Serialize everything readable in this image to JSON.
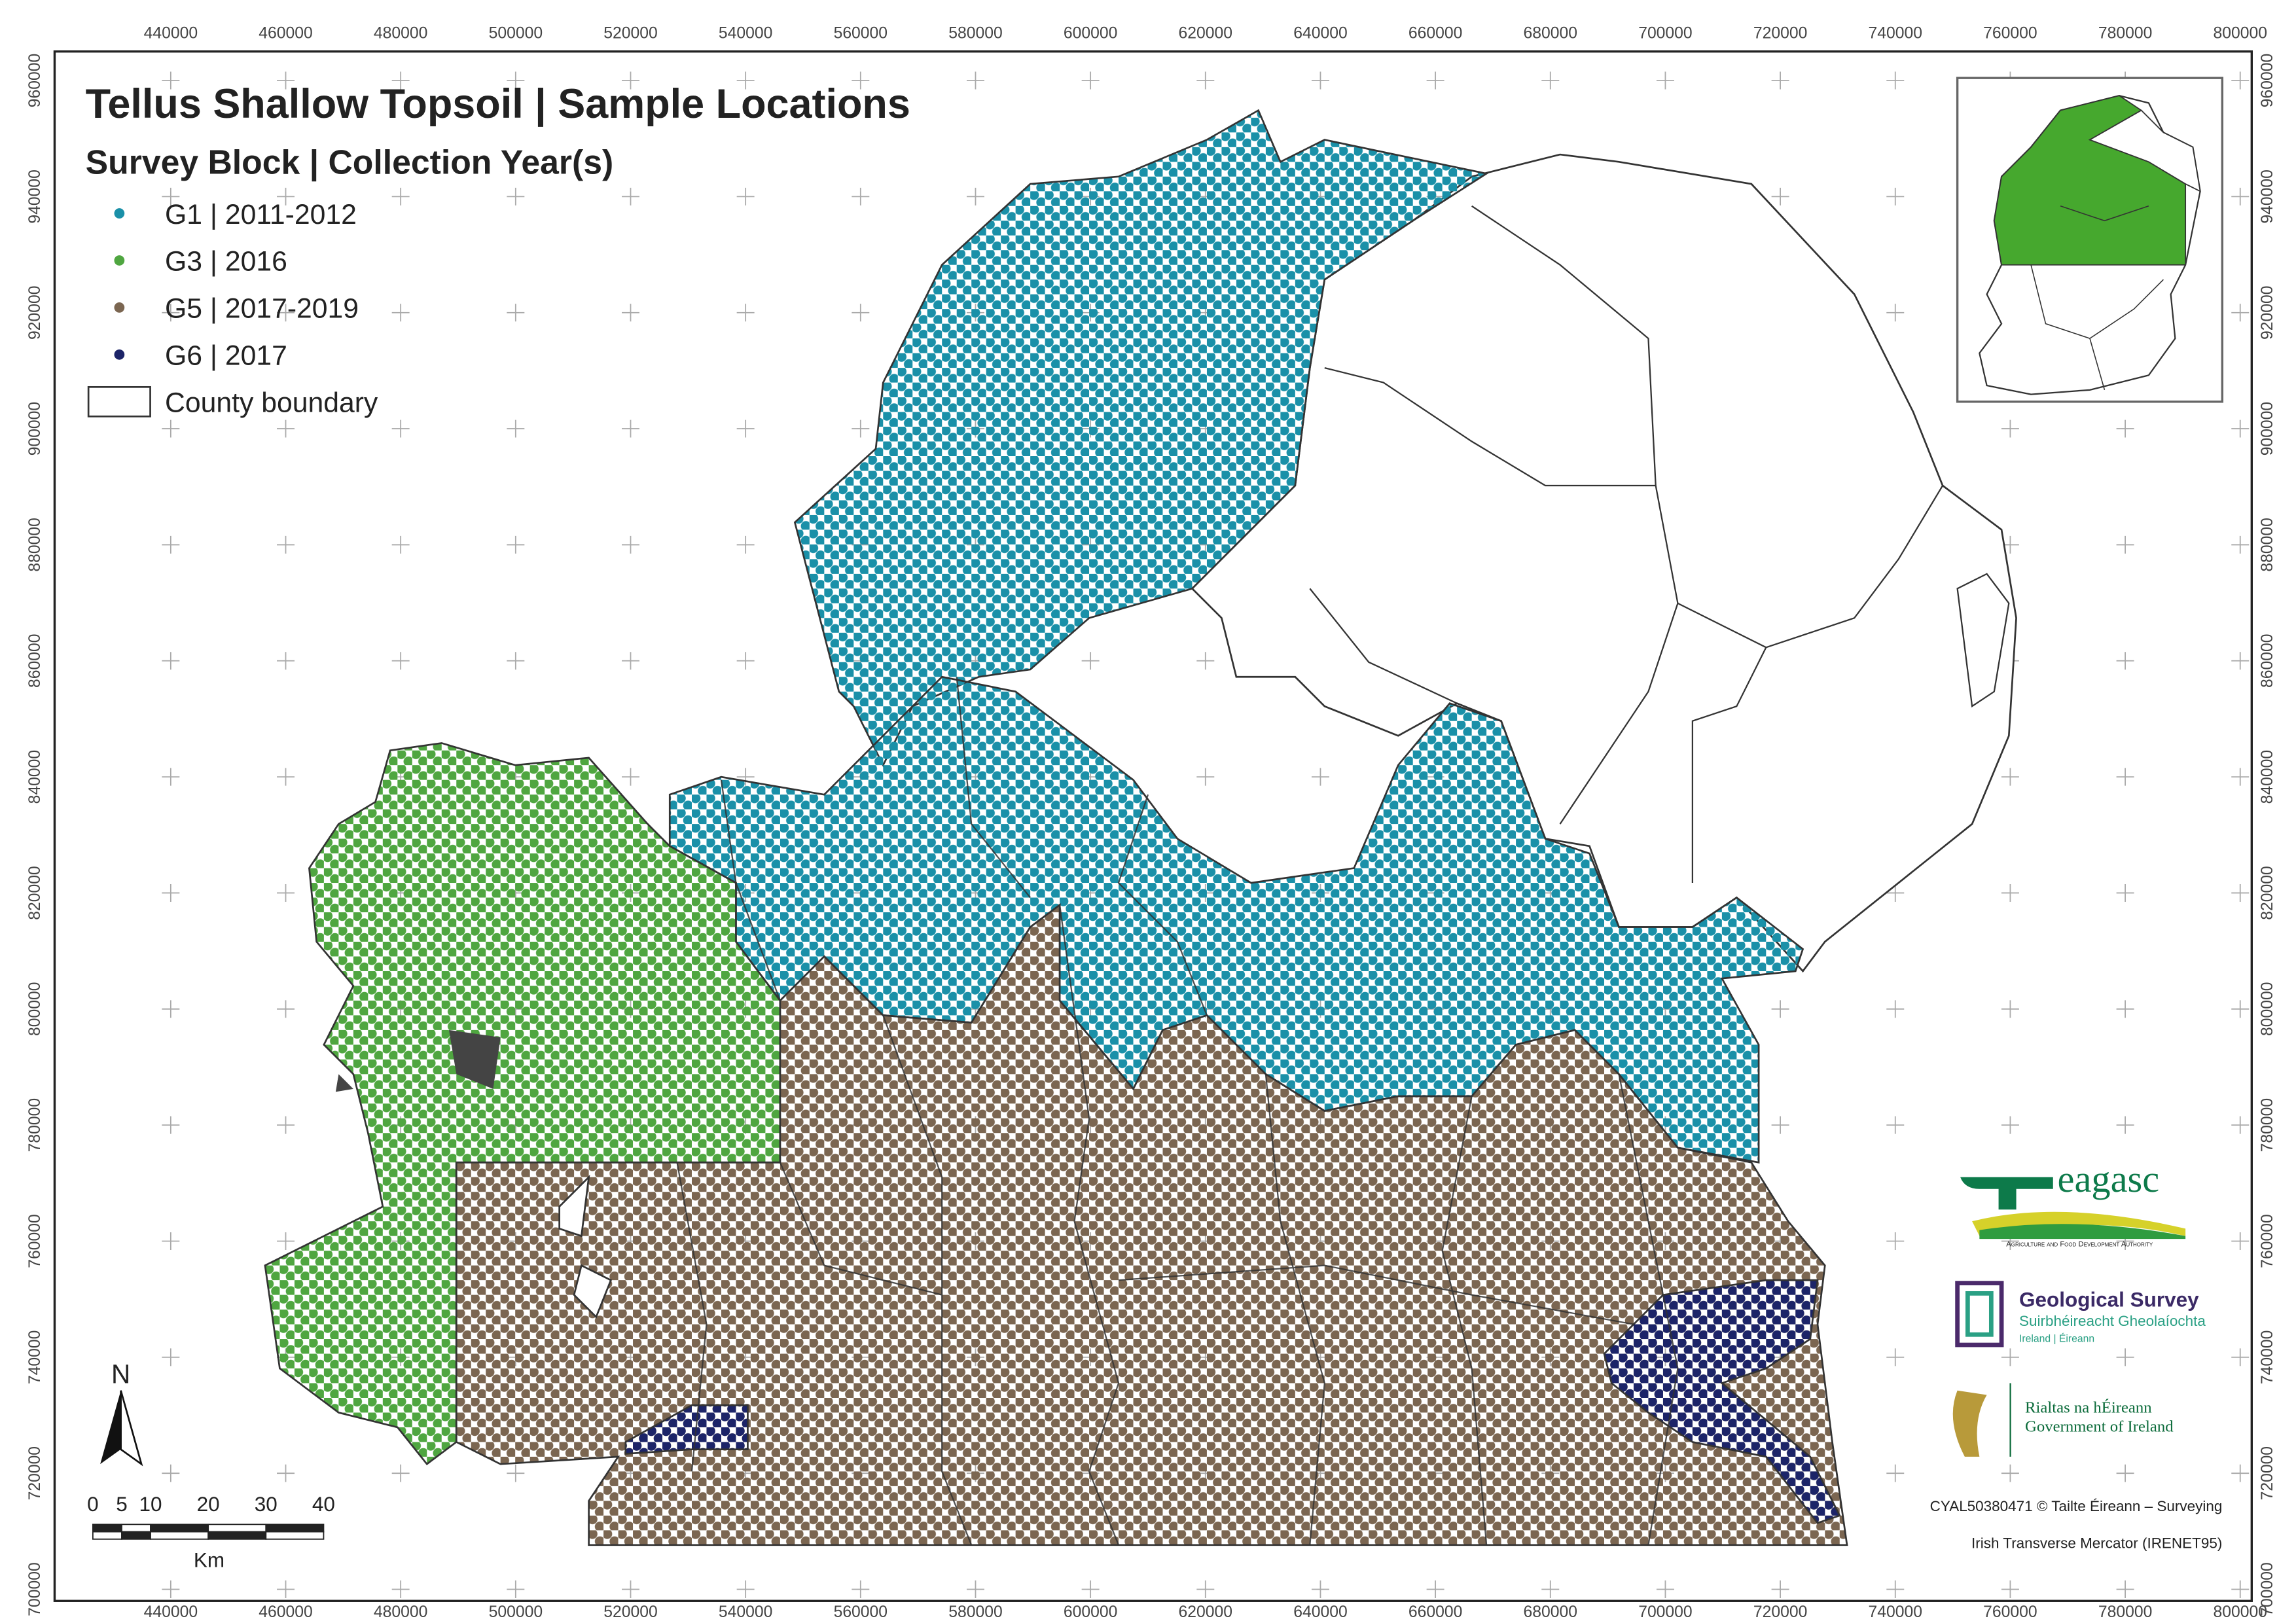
{
  "title": "Tellus Shallow Topsoil | Sample Locations",
  "subtitle": "Survey Block | Collection Year(s)",
  "legend": [
    {
      "label": "G1 | 2011-2012",
      "color": "#1a90a8"
    },
    {
      "label": "G3 | 2016",
      "color": "#4fa640"
    },
    {
      "label": "G5 | 2017-2019",
      "color": "#7b6651"
    },
    {
      "label": "G6 | 2017",
      "color": "#1c2468"
    }
  ],
  "boundary_legend": "County boundary",
  "frame": {
    "xlim": [
      419800,
      802000
    ],
    "ylim": [
      698000,
      965000
    ],
    "xticks": [
      440000,
      460000,
      480000,
      500000,
      520000,
      540000,
      560000,
      580000,
      600000,
      620000,
      640000,
      660000,
      680000,
      700000,
      720000,
      740000,
      760000,
      780000,
      800000
    ],
    "yticks": [
      700000,
      720000,
      740000,
      760000,
      780000,
      800000,
      820000,
      840000,
      860000,
      880000,
      900000,
      920000,
      940000,
      960000
    ]
  },
  "north": "N",
  "scale_bar": {
    "labels": [
      0,
      5,
      10,
      20,
      30,
      40
    ],
    "unit": "Km"
  },
  "credits": [
    "CYAL50380471 © Tailte Éireann – Surveying",
    "Irish Transverse Mercator (IRENET95)"
  ],
  "logos": {
    "teagasc": "eagasc",
    "teagasc_sub": "Agriculture and Food Development Authority",
    "gsi": "Geological Survey",
    "gsi_irish": "Suirbhéireacht Gheolaíochta",
    "gsi_sub": "Ireland | Éireann",
    "gov_irish": "Rialtas na hÉireann",
    "gov": "Government of Ireland"
  }
}
